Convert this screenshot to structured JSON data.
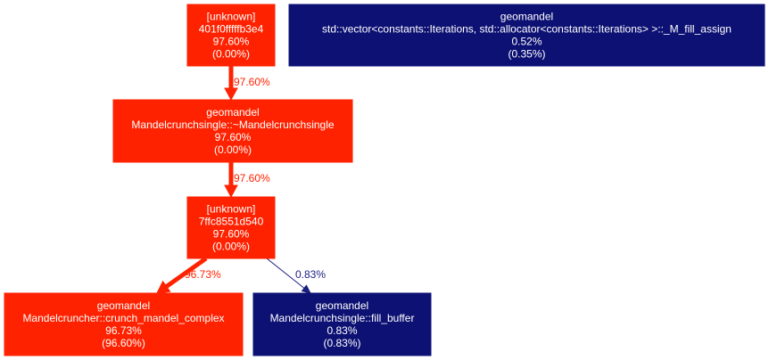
{
  "colors": {
    "hot": "#ff2200",
    "cold": "#0d1173",
    "text": "#ffffff",
    "cold_edge": "#1a1f80"
  },
  "nodes": [
    {
      "id": "n1",
      "tone": "hot",
      "lines": [
        "[unknown]",
        "401f0fffffb3e4",
        "97.60%",
        "(0.00%)"
      ]
    },
    {
      "id": "n2",
      "tone": "cold",
      "lines": [
        "geomandel",
        "std::vector<constants::Iterations, std::allocator<constants::Iterations> >::_M_fill_assign",
        "0.52%",
        "(0.35%)"
      ]
    },
    {
      "id": "n3",
      "tone": "hot",
      "lines": [
        "geomandel",
        "Mandelcrunchsingle::~Mandelcrunchsingle",
        "97.60%",
        "(0.00%)"
      ]
    },
    {
      "id": "n4",
      "tone": "hot",
      "lines": [
        "[unknown]",
        "7ffc8551d540",
        "97.60%",
        "(0.00%)"
      ]
    },
    {
      "id": "n5",
      "tone": "hot",
      "lines": [
        "geomandel",
        "Mandelcruncher::crunch_mandel_complex",
        "96.73%",
        "(96.60%)"
      ]
    },
    {
      "id": "n6",
      "tone": "cold",
      "lines": [
        "geomandel",
        "Mandelcrunchsingle::fill_buffer",
        "0.83%",
        "(0.83%)"
      ]
    }
  ],
  "edges": [
    {
      "id": "e1",
      "from": "n1",
      "to": "n3",
      "label": "97.60%",
      "tone": "hot"
    },
    {
      "id": "e2",
      "from": "n3",
      "to": "n4",
      "label": "97.60%",
      "tone": "hot"
    },
    {
      "id": "e3",
      "from": "n4",
      "to": "n5",
      "label": "96.73%",
      "tone": "hot"
    },
    {
      "id": "e4",
      "from": "n4",
      "to": "n6",
      "label": "0.83%",
      "tone": "cold"
    }
  ]
}
